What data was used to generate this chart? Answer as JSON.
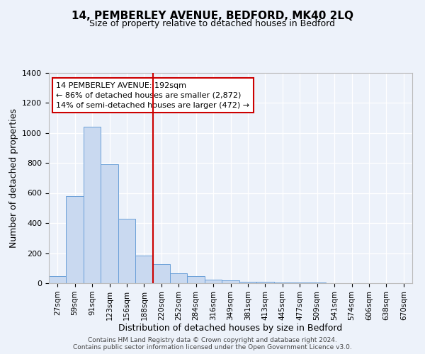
{
  "title": "14, PEMBERLEY AVENUE, BEDFORD, MK40 2LQ",
  "subtitle": "Size of property relative to detached houses in Bedford",
  "xlabel": "Distribution of detached houses by size in Bedford",
  "ylabel": "Number of detached properties",
  "categories": [
    "27sqm",
    "59sqm",
    "91sqm",
    "123sqm",
    "156sqm",
    "188sqm",
    "220sqm",
    "252sqm",
    "284sqm",
    "316sqm",
    "349sqm",
    "381sqm",
    "413sqm",
    "445sqm",
    "477sqm",
    "509sqm",
    "541sqm",
    "574sqm",
    "606sqm",
    "638sqm",
    "670sqm"
  ],
  "values": [
    47,
    578,
    1040,
    790,
    430,
    185,
    128,
    65,
    48,
    25,
    18,
    10,
    8,
    5,
    4,
    3,
    2,
    2,
    1,
    1,
    0
  ],
  "bar_color": "#c9d9f0",
  "bar_edge_color": "#6a9fd8",
  "vline_x": 5.5,
  "vline_color": "#cc0000",
  "annotation_text": "14 PEMBERLEY AVENUE: 192sqm\n← 86% of detached houses are smaller (2,872)\n14% of semi-detached houses are larger (472) →",
  "annotation_box_color": "#ffffff",
  "annotation_box_edge_color": "#cc0000",
  "ylim": [
    0,
    1400
  ],
  "yticks": [
    0,
    200,
    400,
    600,
    800,
    1000,
    1200,
    1400
  ],
  "footer_text": "Contains HM Land Registry data © Crown copyright and database right 2024.\nContains public sector information licensed under the Open Government Licence v3.0.",
  "bg_color": "#edf2fa",
  "plot_bg_color": "#edf2fa",
  "title_fontsize": 11,
  "subtitle_fontsize": 9,
  "ylabel_fontsize": 9,
  "xlabel_fontsize": 9,
  "tick_fontsize": 8,
  "xtick_fontsize": 7.5,
  "annotation_fontsize": 8
}
